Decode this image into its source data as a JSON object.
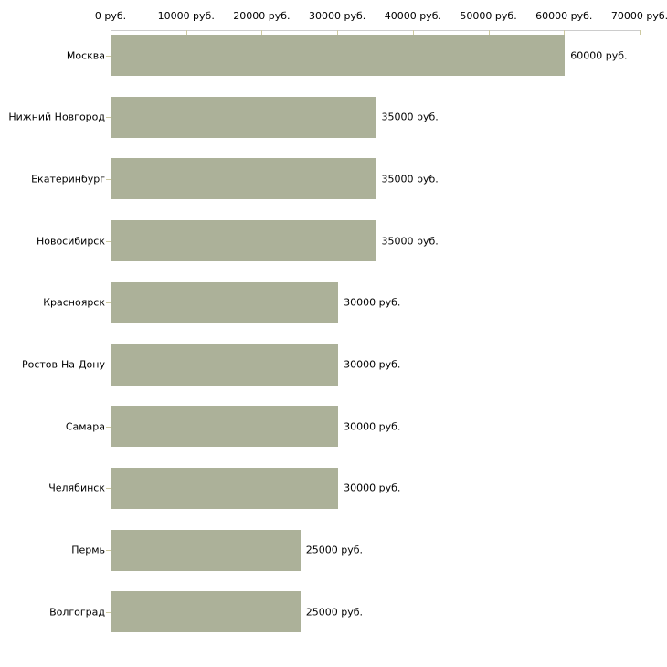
{
  "chart_data": {
    "type": "bar",
    "orientation": "horizontal",
    "title": "",
    "categories": [
      "Москва",
      "Нижний Новгород",
      "Екатеринбург",
      "Новосибирск",
      "Красноярск",
      "Ростов-На-Дону",
      "Самара",
      "Челябинск",
      "Пермь",
      "Волгоград"
    ],
    "values": [
      60000,
      35000,
      35000,
      35000,
      30000,
      30000,
      30000,
      30000,
      25000,
      25000
    ],
    "value_labels": [
      "60000 руб.",
      "35000 руб.",
      "35000 руб.",
      "35000 руб.",
      "30000 руб.",
      "30000 руб.",
      "30000 руб.",
      "30000 руб.",
      "25000 руб.",
      "25000 руб."
    ],
    "x_axis": {
      "position": "top",
      "range": [
        0,
        70000
      ],
      "ticks": [
        0,
        10000,
        20000,
        30000,
        40000,
        50000,
        60000,
        70000
      ],
      "tick_labels": [
        "0 руб.",
        "10000 руб.",
        "20000 руб.",
        "30000 руб.",
        "40000 руб.",
        "50000 руб.",
        "60000 руб.",
        "70000 руб."
      ]
    },
    "grid": false,
    "legend": false,
    "colors": {
      "bar": "#acb199",
      "axis_line": "#cccccc",
      "tick_mark": "#cdc9a0",
      "text": "#000000",
      "background": "#ffffff"
    }
  }
}
